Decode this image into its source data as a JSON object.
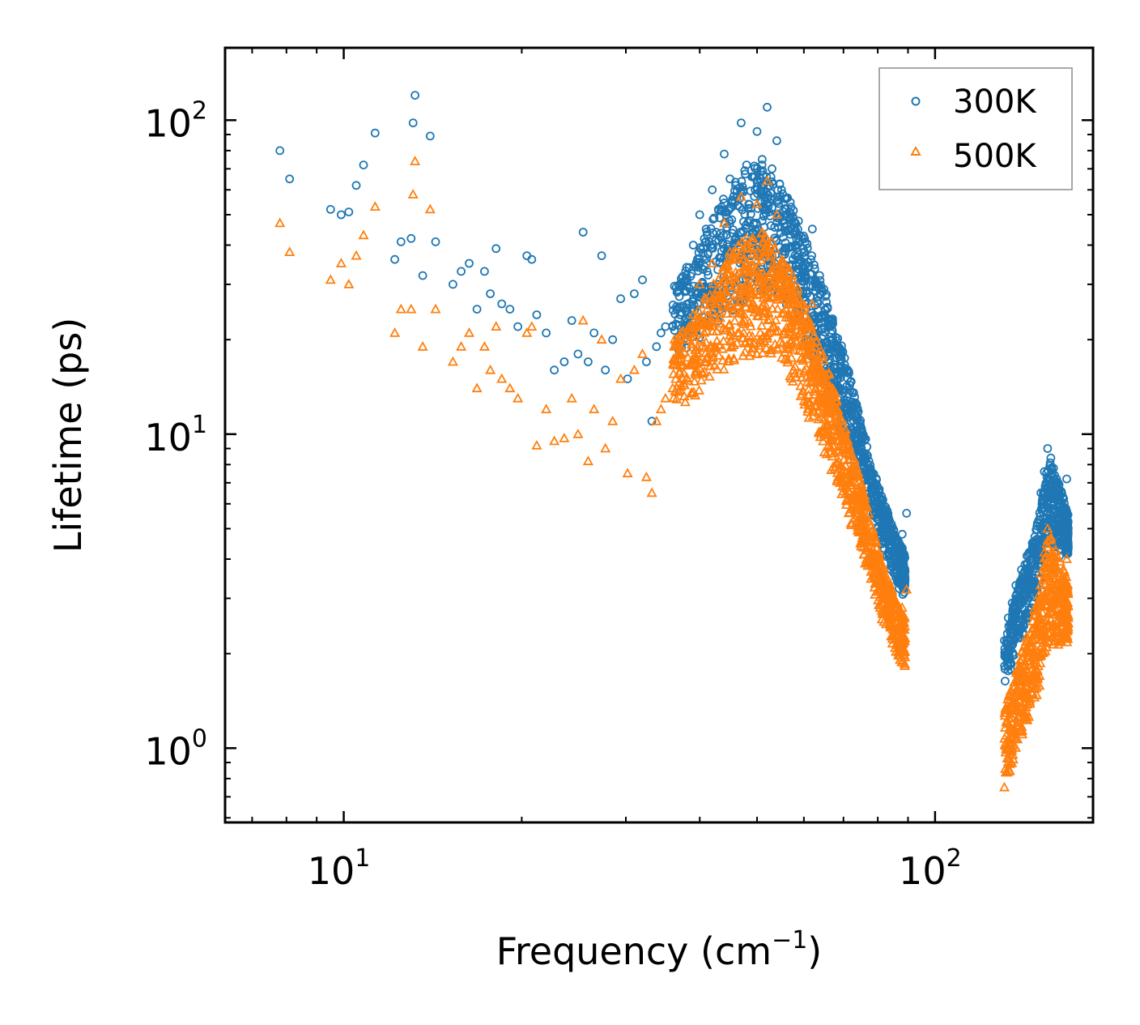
{
  "chart_data": {
    "type": "scatter",
    "title": "",
    "xlabel": "Frequency (cm",
    "xlabel_sup": "−1",
    "xlabel_end": ")",
    "ylabel": "Lifetime (ps)",
    "x_scale": "log",
    "y_scale": "log",
    "xlim": [
      6.3,
      185
    ],
    "ylim": [
      0.58,
      170
    ],
    "x_ticks": [
      {
        "base": "10",
        "exp": "1",
        "value": 10
      },
      {
        "base": "10",
        "exp": "2",
        "value": 100
      }
    ],
    "y_ticks": [
      {
        "base": "10",
        "exp": "0",
        "value": 1
      },
      {
        "base": "10",
        "exp": "1",
        "value": 10
      },
      {
        "base": "10",
        "exp": "2",
        "value": 100
      }
    ],
    "legend_position": "top-right",
    "grid": false,
    "series": [
      {
        "name": "300K",
        "color": "#1f77b4",
        "marker": "circle",
        "points": [
          [
            7.8,
            80
          ],
          [
            8.1,
            65
          ],
          [
            9.5,
            52
          ],
          [
            9.9,
            50
          ],
          [
            10.2,
            51
          ],
          [
            10.5,
            62
          ],
          [
            10.8,
            72
          ],
          [
            11.3,
            91
          ],
          [
            12.2,
            36
          ],
          [
            12.5,
            41
          ],
          [
            13.0,
            42
          ],
          [
            13.1,
            98
          ],
          [
            13.2,
            120
          ],
          [
            13.6,
            32
          ],
          [
            14.0,
            89
          ],
          [
            14.3,
            41
          ],
          [
            15.3,
            30
          ],
          [
            15.8,
            33
          ],
          [
            16.3,
            35
          ],
          [
            16.8,
            25
          ],
          [
            17.3,
            33
          ],
          [
            17.7,
            28
          ],
          [
            18.1,
            39
          ],
          [
            18.5,
            26
          ],
          [
            19.1,
            25
          ],
          [
            19.7,
            22
          ],
          [
            20.4,
            37
          ],
          [
            20.8,
            36
          ],
          [
            21.2,
            24
          ],
          [
            22.0,
            21
          ],
          [
            22.7,
            16
          ],
          [
            23.6,
            17
          ],
          [
            24.3,
            23
          ],
          [
            24.9,
            18
          ],
          [
            25.4,
            44
          ],
          [
            25.9,
            17
          ],
          [
            26.5,
            21
          ],
          [
            27.3,
            37
          ],
          [
            27.7,
            16
          ],
          [
            28.5,
            20
          ],
          [
            29.4,
            27
          ],
          [
            30.2,
            15
          ],
          [
            31.0,
            28
          ],
          [
            32.0,
            31
          ],
          [
            32.5,
            17
          ],
          [
            33.2,
            11
          ],
          [
            33.8,
            19
          ],
          [
            34.4,
            21
          ],
          [
            35.0,
            22
          ],
          [
            36.0,
            22
          ],
          [
            37.0,
            30
          ],
          [
            38.0,
            34
          ],
          [
            39.0,
            40
          ],
          [
            40.0,
            50
          ],
          [
            41.0,
            45
          ],
          [
            42.0,
            60
          ],
          [
            43.0,
            52
          ],
          [
            44.0,
            78
          ],
          [
            45.0,
            65
          ],
          [
            46.0,
            62
          ],
          [
            47.0,
            98
          ],
          [
            48.0,
            72
          ],
          [
            49.0,
            66
          ],
          [
            50.0,
            92
          ],
          [
            51.0,
            75
          ],
          [
            52.0,
            110
          ],
          [
            53.0,
            70
          ],
          [
            54.0,
            86
          ],
          [
            55.0,
            60
          ],
          [
            56.0,
            52
          ],
          [
            57.0,
            45
          ],
          [
            58.0,
            40
          ],
          [
            59.0,
            36
          ],
          [
            60.0,
            38
          ],
          [
            61.0,
            34
          ],
          [
            62.0,
            45
          ],
          [
            63.0,
            30
          ],
          [
            64.0,
            28
          ],
          [
            65.0,
            24
          ],
          [
            66.0,
            22
          ],
          [
            68.0,
            19
          ],
          [
            70.0,
            16
          ],
          [
            72.0,
            12
          ],
          [
            74.0,
            9.5
          ],
          [
            76.0,
            8.5
          ],
          [
            78.0,
            7.2
          ],
          [
            80.0,
            6.0
          ],
          [
            82.0,
            5.2
          ],
          [
            84.0,
            4.6
          ],
          [
            86.0,
            3.9
          ],
          [
            88.0,
            4.8
          ],
          [
            89.5,
            5.6
          ],
          [
            131,
            2.2
          ],
          [
            133,
            2.6
          ],
          [
            135,
            2.9
          ],
          [
            137,
            3.3
          ],
          [
            140,
            3.7
          ],
          [
            143,
            4.1
          ],
          [
            146,
            4.5
          ],
          [
            149,
            5.2
          ],
          [
            151,
            6.5
          ],
          [
            153,
            7.6
          ],
          [
            155,
            9.0
          ],
          [
            157,
            8.4
          ],
          [
            159,
            7.0
          ],
          [
            161,
            6.2
          ],
          [
            163,
            5.4
          ],
          [
            165,
            4.8
          ],
          [
            167,
            7.2
          ],
          [
            168,
            4.4
          ]
        ],
        "envelope": [
          [
            36,
            18,
            30
          ],
          [
            39,
            19,
            35
          ],
          [
            42,
            22,
            48
          ],
          [
            45,
            24,
            62
          ],
          [
            48,
            26,
            70
          ],
          [
            51,
            28,
            74
          ],
          [
            54,
            27,
            66
          ],
          [
            57,
            24,
            56
          ],
          [
            60,
            20,
            44
          ],
          [
            63,
            16,
            34
          ],
          [
            66,
            13,
            27
          ],
          [
            69,
            10.5,
            20
          ],
          [
            72,
            8.5,
            15
          ],
          [
            75,
            7,
            11
          ],
          [
            78,
            5.5,
            8
          ],
          [
            81,
            4.5,
            6.5
          ],
          [
            84,
            3.7,
            5.3
          ],
          [
            87,
            3.2,
            4.5
          ],
          [
            89,
            3.0,
            4.2
          ],
          [
            131,
            1.5,
            2.1
          ],
          [
            136,
            1.9,
            2.9
          ],
          [
            141,
            2.3,
            3.7
          ],
          [
            146,
            2.8,
            4.5
          ],
          [
            151,
            3.3,
            5.8
          ],
          [
            156,
            4.5,
            8.5
          ],
          [
            161,
            4.0,
            7.2
          ],
          [
            166,
            4.2,
            6.0
          ],
          [
            168,
            4.0,
            5.5
          ]
        ]
      },
      {
        "name": "500K",
        "color": "#ff7f0e",
        "marker": "triangle",
        "points": [
          [
            7.8,
            47
          ],
          [
            8.1,
            38
          ],
          [
            9.5,
            31
          ],
          [
            9.9,
            35
          ],
          [
            10.2,
            30
          ],
          [
            10.5,
            37
          ],
          [
            10.8,
            43
          ],
          [
            11.3,
            53
          ],
          [
            12.2,
            21
          ],
          [
            12.5,
            25
          ],
          [
            13.0,
            25
          ],
          [
            13.1,
            58
          ],
          [
            13.2,
            74
          ],
          [
            13.6,
            19
          ],
          [
            14.0,
            52
          ],
          [
            14.3,
            25
          ],
          [
            15.3,
            17
          ],
          [
            15.8,
            19
          ],
          [
            16.3,
            21
          ],
          [
            16.8,
            14
          ],
          [
            17.3,
            19
          ],
          [
            17.7,
            16
          ],
          [
            18.1,
            22
          ],
          [
            18.5,
            15
          ],
          [
            19.1,
            14
          ],
          [
            19.7,
            13
          ],
          [
            20.4,
            21
          ],
          [
            20.8,
            22
          ],
          [
            21.2,
            9.2
          ],
          [
            22.0,
            12
          ],
          [
            22.7,
            9.5
          ],
          [
            23.6,
            9.7
          ],
          [
            24.3,
            13
          ],
          [
            24.9,
            10
          ],
          [
            25.4,
            23
          ],
          [
            25.9,
            8.2
          ],
          [
            26.5,
            12
          ],
          [
            27.3,
            20
          ],
          [
            27.7,
            9
          ],
          [
            28.5,
            11
          ],
          [
            29.4,
            15
          ],
          [
            30.2,
            7.5
          ],
          [
            31.0,
            16
          ],
          [
            32.0,
            18
          ],
          [
            32.5,
            7.3
          ],
          [
            33.2,
            6.5
          ],
          [
            33.8,
            11
          ],
          [
            34.4,
            12
          ],
          [
            35.0,
            13
          ],
          [
            36.0,
            14
          ],
          [
            37.0,
            17
          ],
          [
            38.0,
            20
          ],
          [
            39.0,
            24
          ],
          [
            40.0,
            30
          ],
          [
            41.0,
            27
          ],
          [
            42.0,
            35
          ],
          [
            43.0,
            31
          ],
          [
            44.0,
            47
          ],
          [
            45.0,
            38
          ],
          [
            46.0,
            36
          ],
          [
            47.0,
            57
          ],
          [
            48.0,
            42
          ],
          [
            49.0,
            39
          ],
          [
            50.0,
            54
          ],
          [
            51.0,
            44
          ],
          [
            52.0,
            64
          ],
          [
            53.0,
            41
          ],
          [
            54.0,
            50
          ],
          [
            55.0,
            35
          ],
          [
            56.0,
            30
          ],
          [
            57.0,
            26
          ],
          [
            58.0,
            23
          ],
          [
            59.0,
            21
          ],
          [
            60.0,
            22
          ],
          [
            61.0,
            20
          ],
          [
            62.0,
            26
          ],
          [
            63.0,
            17
          ],
          [
            64.0,
            16
          ],
          [
            65.0,
            14
          ],
          [
            66.0,
            12.5
          ],
          [
            68.0,
            11
          ],
          [
            70.0,
            9
          ],
          [
            72.0,
            7
          ],
          [
            74.0,
            5.5
          ],
          [
            76.0,
            4.7
          ],
          [
            78.0,
            4.0
          ],
          [
            80.0,
            3.4
          ],
          [
            82.0,
            3.0
          ],
          [
            84.0,
            2.6
          ],
          [
            86.0,
            2.3
          ],
          [
            88.0,
            2.8
          ],
          [
            89.5,
            3.2
          ],
          [
            131,
            0.75
          ],
          [
            133,
            1.0
          ],
          [
            135,
            1.2
          ],
          [
            137,
            1.5
          ],
          [
            140,
            1.8
          ],
          [
            143,
            2.1
          ],
          [
            146,
            2.4
          ],
          [
            149,
            2.9
          ],
          [
            151,
            3.6
          ],
          [
            153,
            4.2
          ],
          [
            155,
            5.0
          ],
          [
            157,
            4.6
          ],
          [
            159,
            3.8
          ],
          [
            161,
            3.3
          ],
          [
            163,
            2.9
          ],
          [
            165,
            2.6
          ],
          [
            167,
            4.0
          ],
          [
            168,
            2.5
          ]
        ],
        "envelope": [
          [
            36,
            12,
            20
          ],
          [
            39,
            13,
            23
          ],
          [
            42,
            15,
            30
          ],
          [
            45,
            16,
            38
          ],
          [
            48,
            17,
            42
          ],
          [
            51,
            18,
            44
          ],
          [
            54,
            17,
            40
          ],
          [
            57,
            15,
            33
          ],
          [
            60,
            12,
            26
          ],
          [
            63,
            10,
            20
          ],
          [
            66,
            8,
            16
          ],
          [
            69,
            6.5,
            12
          ],
          [
            72,
            5.2,
            9
          ],
          [
            75,
            4.2,
            7
          ],
          [
            78,
            3.3,
            5.2
          ],
          [
            81,
            2.6,
            4.0
          ],
          [
            84,
            2.2,
            3.3
          ],
          [
            87,
            1.9,
            2.8
          ],
          [
            89,
            1.8,
            2.6
          ],
          [
            131,
            0.75,
            1.3
          ],
          [
            136,
            0.9,
            1.7
          ],
          [
            141,
            1.1,
            2.1
          ],
          [
            146,
            1.3,
            2.6
          ],
          [
            151,
            1.6,
            3.4
          ],
          [
            156,
            2.2,
            5.0
          ],
          [
            161,
            2.0,
            4.2
          ],
          [
            166,
            2.2,
            3.6
          ],
          [
            168,
            2.1,
            3.3
          ]
        ]
      }
    ]
  }
}
